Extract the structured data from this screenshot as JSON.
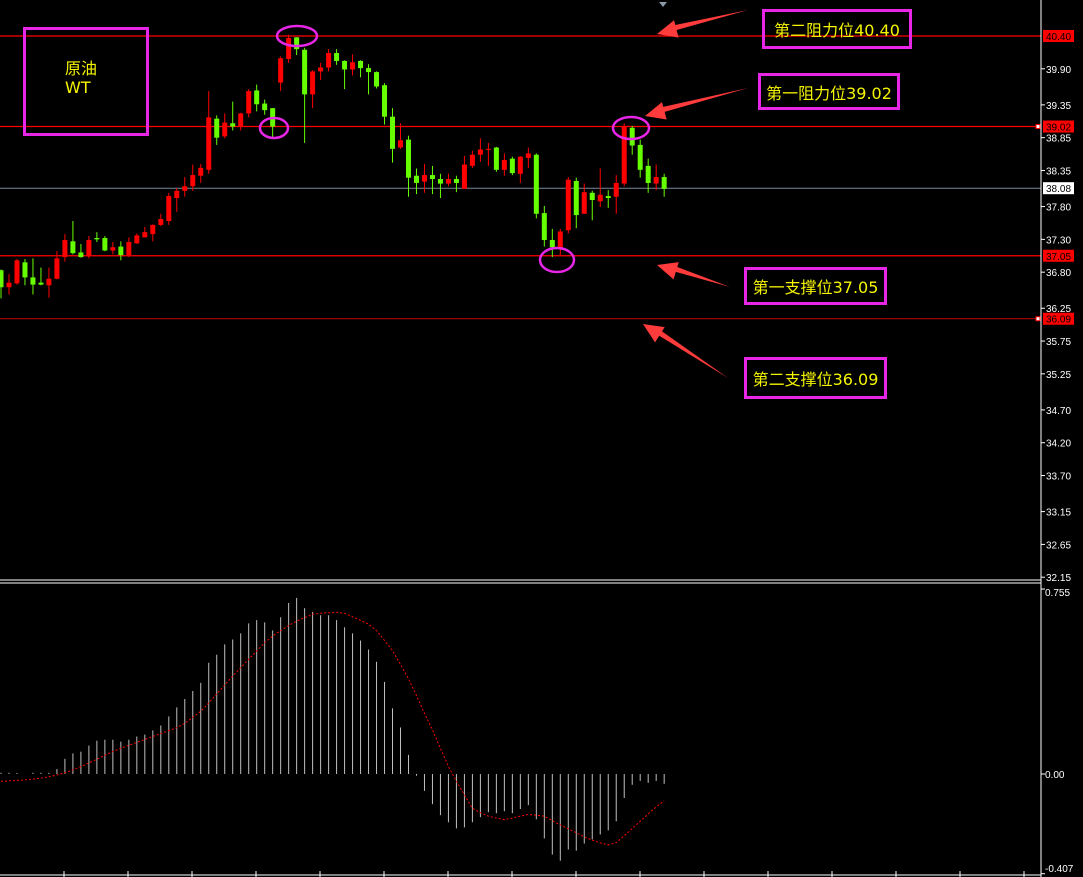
{
  "instrument_box": {
    "line1": "原油",
    "line2": "WT"
  },
  "annotations": [
    {
      "label": "第二阻力位40.40",
      "level": 40.4
    },
    {
      "label": "第一阻力位39.02",
      "level": 39.02
    },
    {
      "label": "第一支撑位37.05",
      "level": 37.05
    },
    {
      "label": "第二支撑位36.09",
      "level": 36.09
    }
  ],
  "colors": {
    "background": "#000000",
    "bull_candle": "#ff0000",
    "bear_candle": "#66ff00",
    "level_line": "#ff0000",
    "annotation_border": "#e826e8",
    "annotation_text": "#f5f500",
    "macd_histogram": "#c0c0c0",
    "macd_signal": "#ff0000",
    "current_price_line": "#778899"
  },
  "chart_data": [
    {
      "type": "candlestick",
      "ylim": [
        32.15,
        40.4
      ],
      "y_ticks": [
        "39.90",
        "39.35",
        "38.85",
        "38.35",
        "37.80",
        "37.30",
        "36.80",
        "36.25",
        "35.75",
        "35.25",
        "34.70",
        "34.20",
        "33.70",
        "33.15",
        "32.65",
        "32.15"
      ],
      "current_price": "38.08",
      "horizontal_levels": [
        "40.40",
        "39.02",
        "37.05",
        "36.09"
      ],
      "ohlc_fields": [
        "open",
        "high",
        "low",
        "close"
      ],
      "candles": [
        [
          36.83,
          36.84,
          36.4,
          36.57
        ],
        [
          36.57,
          36.77,
          36.46,
          36.64
        ],
        [
          36.63,
          37.0,
          36.61,
          36.98
        ],
        [
          36.95,
          37.0,
          36.6,
          36.72
        ],
        [
          36.72,
          37.01,
          36.46,
          36.61
        ],
        [
          36.64,
          36.87,
          36.6,
          36.61
        ],
        [
          36.6,
          36.87,
          36.41,
          36.7
        ],
        [
          36.7,
          37.12,
          36.69,
          37.01
        ],
        [
          37.03,
          37.38,
          36.96,
          37.29
        ],
        [
          37.27,
          37.58,
          37.07,
          37.09
        ],
        [
          37.1,
          37.23,
          37.02,
          37.03
        ],
        [
          37.04,
          37.35,
          37.01,
          37.29
        ],
        [
          37.32,
          37.41,
          37.26,
          37.3
        ],
        [
          37.32,
          37.35,
          37.12,
          37.13
        ],
        [
          37.13,
          37.26,
          37.07,
          37.18
        ],
        [
          37.19,
          37.27,
          36.98,
          37.06
        ],
        [
          37.06,
          37.33,
          37.03,
          37.26
        ],
        [
          37.24,
          37.39,
          37.23,
          37.36
        ],
        [
          37.33,
          37.49,
          37.33,
          37.41
        ],
        [
          37.38,
          37.53,
          37.27,
          37.52
        ],
        [
          37.52,
          37.69,
          37.5,
          37.61
        ],
        [
          37.58,
          38.01,
          37.52,
          37.96
        ],
        [
          37.93,
          38.08,
          37.72,
          38.04
        ],
        [
          38.04,
          38.25,
          37.95,
          38.11
        ],
        [
          38.11,
          38.44,
          38.04,
          38.28
        ],
        [
          38.27,
          38.45,
          38.16,
          38.39
        ],
        [
          38.36,
          39.56,
          38.3,
          39.16
        ],
        [
          39.14,
          39.19,
          38.74,
          38.85
        ],
        [
          38.87,
          39.22,
          38.84,
          39.08
        ],
        [
          39.07,
          39.4,
          38.96,
          39.02
        ],
        [
          39.02,
          39.23,
          38.96,
          39.22
        ],
        [
          39.22,
          39.59,
          39.16,
          39.56
        ],
        [
          39.57,
          39.66,
          39.25,
          39.36
        ],
        [
          39.37,
          39.43,
          39.2,
          39.27
        ],
        [
          39.3,
          39.3,
          38.85,
          39.02
        ],
        [
          39.69,
          40.09,
          39.56,
          40.06
        ],
        [
          40.05,
          40.42,
          39.99,
          40.37
        ],
        [
          40.38,
          40.38,
          40.11,
          40.2
        ],
        [
          40.19,
          40.22,
          38.77,
          39.51
        ],
        [
          39.51,
          39.88,
          39.3,
          39.86
        ],
        [
          39.86,
          39.99,
          39.73,
          39.92
        ],
        [
          39.92,
          40.2,
          39.86,
          40.14
        ],
        [
          40.14,
          40.2,
          39.96,
          40.02
        ],
        [
          40.02,
          40.03,
          39.59,
          39.89
        ],
        [
          39.89,
          40.12,
          39.8,
          40.0
        ],
        [
          40.02,
          40.03,
          39.77,
          39.91
        ],
        [
          39.91,
          39.97,
          39.51,
          39.85
        ],
        [
          39.85,
          39.86,
          39.6,
          39.63
        ],
        [
          39.65,
          39.68,
          39.05,
          39.17
        ],
        [
          39.17,
          39.3,
          38.47,
          38.68
        ],
        [
          38.7,
          39.07,
          38.68,
          38.81
        ],
        [
          38.82,
          38.88,
          37.95,
          38.24
        ],
        [
          38.27,
          38.38,
          37.99,
          38.16
        ],
        [
          38.18,
          38.45,
          38.01,
          38.28
        ],
        [
          38.28,
          38.42,
          37.99,
          38.22
        ],
        [
          38.22,
          38.3,
          37.93,
          38.15
        ],
        [
          38.15,
          38.3,
          38.11,
          38.22
        ],
        [
          38.22,
          38.27,
          38.02,
          38.16
        ],
        [
          38.07,
          38.57,
          38.07,
          38.44
        ],
        [
          38.42,
          38.65,
          38.39,
          38.59
        ],
        [
          38.59,
          38.84,
          38.48,
          38.67
        ],
        [
          38.67,
          38.77,
          38.42,
          38.68
        ],
        [
          38.7,
          38.71,
          38.33,
          38.36
        ],
        [
          38.36,
          38.61,
          38.27,
          38.51
        ],
        [
          38.53,
          38.56,
          38.28,
          38.31
        ],
        [
          38.3,
          38.57,
          38.16,
          38.56
        ],
        [
          38.54,
          38.7,
          38.39,
          38.61
        ],
        [
          38.59,
          38.61,
          37.62,
          37.69
        ],
        [
          37.7,
          37.81,
          37.19,
          37.29
        ],
        [
          37.29,
          37.46,
          37.03,
          37.18
        ],
        [
          37.16,
          37.46,
          37.06,
          37.42
        ],
        [
          37.44,
          38.25,
          37.39,
          38.21
        ],
        [
          38.19,
          38.24,
          37.47,
          37.67
        ],
        [
          37.69,
          38.15,
          37.69,
          38.02
        ],
        [
          38.01,
          38.04,
          37.59,
          37.9
        ],
        [
          37.88,
          38.38,
          37.79,
          37.98
        ],
        [
          37.96,
          38.05,
          37.78,
          37.93
        ],
        [
          37.95,
          38.28,
          37.69,
          38.16
        ],
        [
          38.15,
          39.07,
          38.11,
          39.02
        ],
        [
          39.0,
          39.03,
          38.59,
          38.73
        ],
        [
          38.74,
          38.82,
          38.24,
          38.36
        ],
        [
          38.42,
          38.53,
          38.01,
          38.16
        ],
        [
          38.15,
          38.44,
          38.05,
          38.25
        ],
        [
          38.25,
          38.3,
          37.95,
          38.07
        ]
      ]
    },
    {
      "type": "bar+line",
      "ylim": [
        -0.407,
        0.755
      ],
      "y_ticks": [
        "0.755",
        "0.00",
        "-0.407"
      ],
      "histogram": [
        0.005,
        0.005,
        0.004,
        0,
        0.005,
        0.005,
        0.005,
        0.02,
        0.062,
        0.084,
        0.091,
        0.116,
        0.136,
        0.14,
        0.14,
        0.132,
        0.14,
        0.153,
        0.161,
        0.178,
        0.198,
        0.235,
        0.272,
        0.306,
        0.339,
        0.372,
        0.454,
        0.487,
        0.529,
        0.549,
        0.574,
        0.615,
        0.628,
        0.619,
        0.586,
        0.64,
        0.698,
        0.719,
        0.677,
        0.661,
        0.648,
        0.648,
        0.628,
        0.599,
        0.574,
        0.545,
        0.508,
        0.458,
        0.376,
        0.268,
        0.19,
        0.078,
        -0.007,
        -0.069,
        -0.123,
        -0.168,
        -0.197,
        -0.222,
        -0.218,
        -0.197,
        -0.176,
        -0.156,
        -0.16,
        -0.152,
        -0.16,
        -0.143,
        -0.127,
        -0.185,
        -0.263,
        -0.329,
        -0.354,
        -0.308,
        -0.313,
        -0.284,
        -0.267,
        -0.247,
        -0.23,
        -0.193,
        -0.098,
        -0.044,
        -0.028,
        -0.036,
        -0.028,
        -0.04
      ],
      "signal": [
        -0.03,
        -0.028,
        -0.026,
        -0.024,
        -0.021,
        -0.017,
        -0.011,
        -0.004,
        0.005,
        0.017,
        0.03,
        0.045,
        0.06,
        0.076,
        0.092,
        0.105,
        0.117,
        0.129,
        0.141,
        0.153,
        0.165,
        0.177,
        0.189,
        0.207,
        0.231,
        0.256,
        0.29,
        0.327,
        0.363,
        0.4,
        0.434,
        0.468,
        0.502,
        0.536,
        0.563,
        0.585,
        0.606,
        0.624,
        0.638,
        0.652,
        0.656,
        0.658,
        0.66,
        0.656,
        0.642,
        0.627,
        0.612,
        0.585,
        0.545,
        0.504,
        0.447,
        0.389,
        0.32,
        0.248,
        0.18,
        0.105,
        0.03,
        -0.03,
        -0.085,
        -0.14,
        -0.158,
        -0.172,
        -0.18,
        -0.186,
        -0.18,
        -0.172,
        -0.165,
        -0.168,
        -0.172,
        -0.19,
        -0.208,
        -0.224,
        -0.24,
        -0.257,
        -0.27,
        -0.281,
        -0.289,
        -0.28,
        -0.252,
        -0.223,
        -0.193,
        -0.163,
        -0.134,
        -0.11
      ]
    }
  ]
}
